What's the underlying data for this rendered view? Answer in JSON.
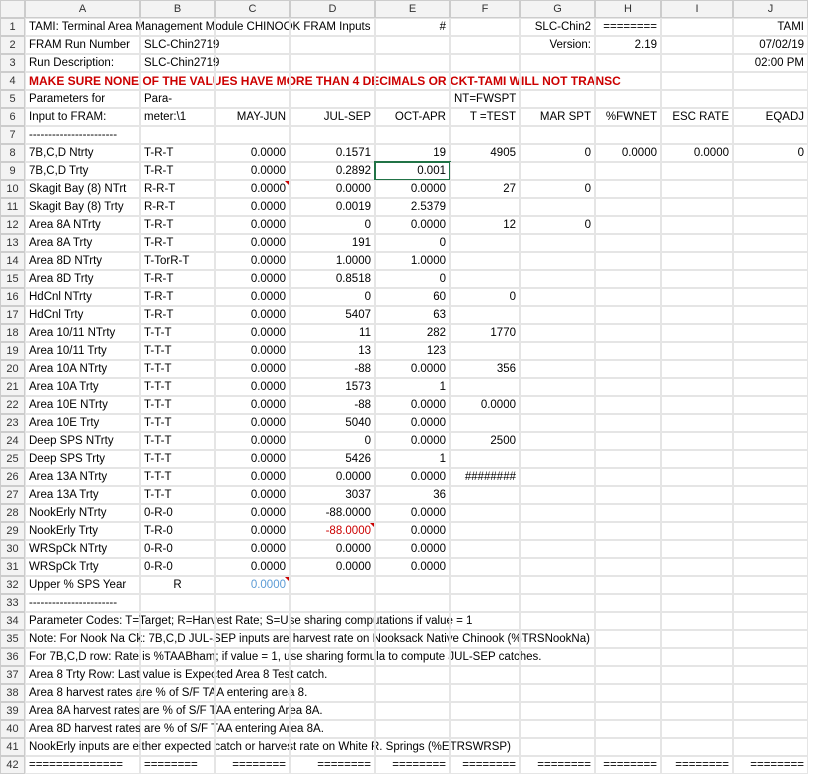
{
  "cols": [
    "",
    "A",
    "B",
    "C",
    "D",
    "E",
    "F",
    "G",
    "H",
    "I",
    "J"
  ],
  "rows": [
    {
      "n": "1",
      "cells": [
        "TAMI: Terminal Area Management Module CHINOOK FRAM Inputs",
        "",
        "",
        "",
        "#",
        "",
        "SLC-Chin2",
        "========",
        "",
        "TAMI"
      ]
    },
    {
      "n": "2",
      "cells": [
        "FRAM Run Number",
        "SLC-Chin2719",
        "",
        "",
        "",
        "",
        "Version:",
        "2.19",
        "",
        "07/02/19"
      ]
    },
    {
      "n": "3",
      "cells": [
        "Run Description:",
        "SLC-Chin2719",
        "",
        "",
        "",
        "",
        "",
        "",
        "",
        "02:00 PM"
      ]
    },
    {
      "n": "4",
      "cells": [
        "MAKE SURE NONE OF THE VALUES HAVE MORE THAN 4 DECIMALS OR CKT-TAMI WILL NOT TRANSC",
        "",
        "",
        "",
        "",
        "",
        "",
        "",
        "",
        ""
      ],
      "warn": true
    },
    {
      "n": "5",
      "cells": [
        "Parameters for",
        "Para-",
        "",
        "",
        "",
        "NT=FWSPT",
        "",
        "",
        "",
        ""
      ]
    },
    {
      "n": "6",
      "cells": [
        "Input to FRAM:",
        "meter:\\1",
        "MAY-JUN",
        "JUL-SEP",
        "OCT-APR",
        "T =TEST",
        "MAR SPT",
        "%FWNET",
        "ESC RATE",
        "EQADJ"
      ]
    },
    {
      "n": "7",
      "cells": [
        "-----------------------",
        "",
        "",
        "",
        "",
        "",
        "",
        "",
        "",
        ""
      ]
    },
    {
      "n": "8",
      "cells": [
        "7B,C,D Ntrty",
        "T-R-T",
        "0.0000",
        "0.1571",
        "19",
        "4905",
        "0",
        "0.0000",
        "0.0000",
        "0"
      ]
    },
    {
      "n": "9",
      "cells": [
        "7B,C,D Trty",
        "T-R-T",
        "0.0000",
        "0.2892",
        "0.001",
        "",
        "",
        "",
        "",
        ""
      ],
      "sel": 4
    },
    {
      "n": "10",
      "cells": [
        "Skagit Bay (8) NTrt",
        "R-R-T",
        "0.0000",
        "0.0000",
        "0.0000",
        "27",
        "0",
        "",
        "",
        ""
      ],
      "tick": 2
    },
    {
      "n": "11",
      "cells": [
        "Skagit Bay (8) Trty",
        "R-R-T",
        "0.0000",
        "0.0019",
        "2.5379",
        "",
        "",
        "",
        "",
        ""
      ]
    },
    {
      "n": "12",
      "cells": [
        "Area 8A NTrty",
        "T-R-T",
        "0.0000",
        "0",
        "0.0000",
        "12",
        "0",
        "",
        "",
        ""
      ]
    },
    {
      "n": "13",
      "cells": [
        "Area 8A Trty",
        "T-R-T",
        "0.0000",
        "191",
        "0",
        "",
        "",
        "",
        "",
        ""
      ]
    },
    {
      "n": "14",
      "cells": [
        "Area 8D NTrty",
        "T-TorR-T",
        "0.0000",
        "1.0000",
        "1.0000",
        "",
        "",
        "",
        "",
        ""
      ]
    },
    {
      "n": "15",
      "cells": [
        "Area 8D Trty",
        "T-R-T",
        "0.0000",
        "0.8518",
        "0",
        "",
        "",
        "",
        "",
        ""
      ]
    },
    {
      "n": "16",
      "cells": [
        "HdCnl NTrty",
        "T-R-T",
        "0.0000",
        "0",
        "60",
        "0",
        "",
        "",
        "",
        ""
      ]
    },
    {
      "n": "17",
      "cells": [
        "HdCnl Trty",
        "T-R-T",
        "0.0000",
        "5407",
        "63",
        "",
        "",
        "",
        "",
        ""
      ]
    },
    {
      "n": "18",
      "cells": [
        "Area 10/11 NTrty",
        "T-T-T",
        "0.0000",
        "11",
        "282",
        "1770",
        "",
        "",
        "",
        ""
      ]
    },
    {
      "n": "19",
      "cells": [
        "Area 10/11 Trty",
        "T-T-T",
        "0.0000",
        "13",
        "123",
        "",
        "",
        "",
        "",
        ""
      ]
    },
    {
      "n": "20",
      "cells": [
        "Area 10A NTrty",
        "T-T-T",
        "0.0000",
        "-88",
        "0.0000",
        "356",
        "",
        "",
        "",
        ""
      ]
    },
    {
      "n": "21",
      "cells": [
        "Area 10A Trty",
        "T-T-T",
        "0.0000",
        "1573",
        "1",
        "",
        "",
        "",
        "",
        ""
      ]
    },
    {
      "n": "22",
      "cells": [
        "Area 10E NTrty",
        "T-T-T",
        "0.0000",
        "-88",
        "0.0000",
        "0.0000",
        "",
        "",
        "",
        ""
      ]
    },
    {
      "n": "23",
      "cells": [
        "Area 10E Trty",
        "T-T-T",
        "0.0000",
        "5040",
        "0.0000",
        "",
        "",
        "",
        "",
        ""
      ]
    },
    {
      "n": "24",
      "cells": [
        "Deep SPS NTrty",
        "T-T-T",
        "0.0000",
        "0",
        "0.0000",
        "2500",
        "",
        "",
        "",
        ""
      ]
    },
    {
      "n": "25",
      "cells": [
        "Deep SPS Trty",
        "T-T-T",
        "0.0000",
        "5426",
        "1",
        "",
        "",
        "",
        "",
        ""
      ]
    },
    {
      "n": "26",
      "cells": [
        "Area 13A NTrty",
        "T-T-T",
        "0.0000",
        "0.0000",
        "0.0000",
        "########",
        "",
        "",
        "",
        ""
      ]
    },
    {
      "n": "27",
      "cells": [
        "Area 13A Trty",
        "T-T-T",
        "0.0000",
        "3037",
        "36",
        "",
        "",
        "",
        "",
        ""
      ]
    },
    {
      "n": "28",
      "cells": [
        "NookErly NTrty",
        "0-R-0",
        "0.0000",
        "-88.0000",
        "0.0000",
        "",
        "",
        "",
        "",
        ""
      ]
    },
    {
      "n": "29",
      "cells": [
        "NookErly Trty",
        "T-R-0",
        "0.0000",
        "-88.0000",
        "0.0000",
        "",
        "",
        "",
        "",
        ""
      ],
      "red": 3,
      "tick": 3
    },
    {
      "n": "30",
      "cells": [
        "WRSpCk NTrty",
        "0-R-0",
        "0.0000",
        "0.0000",
        "0.0000",
        "",
        "",
        "",
        "",
        ""
      ]
    },
    {
      "n": "31",
      "cells": [
        "WRSpCk Trty",
        "0-R-0",
        "0.0000",
        "0.0000",
        "0.0000",
        "",
        "",
        "",
        "",
        ""
      ]
    },
    {
      "n": "32",
      "cells": [
        "Upper % SPS Year",
        "R",
        "0.0000",
        "",
        "",
        "",
        "",
        "",
        "",
        ""
      ],
      "blue": 2,
      "tick": 2,
      "bcenter": true
    },
    {
      "n": "33",
      "cells": [
        "-----------------------",
        "",
        "",
        "",
        "",
        "",
        "",
        "",
        "",
        ""
      ]
    },
    {
      "n": "34",
      "cells": [
        "Parameter Codes: T=Target; R=Harvest Rate; S=Use sharing computations if value = 1",
        "",
        "",
        "",
        "",
        "",
        "",
        "",
        "",
        ""
      ]
    },
    {
      "n": "35",
      "cells": [
        "Note: For Nook Na Ck: 7B,C,D JUL-SEP inputs are harvest rate on Nooksack Native Chinook (%TRSNookNa)",
        "",
        "",
        "",
        "",
        "",
        "",
        "",
        "",
        ""
      ]
    },
    {
      "n": "36",
      "cells": [
        "       For 7B,C,D row: Rate is %TAABham; if value = 1, use sharing formula to compute JUL-SEP catches.",
        "",
        "",
        "",
        "",
        "",
        "",
        "",
        "",
        ""
      ]
    },
    {
      "n": "37",
      "cells": [
        "       Area 8 Trty Row: Last value is Expected Area 8 Test catch.",
        "",
        "",
        "",
        "",
        "",
        "",
        "",
        "",
        ""
      ]
    },
    {
      "n": "38",
      "cells": [
        "       Area 8 harvest rates are % of S/F TAA entering area 8.",
        "",
        "",
        "",
        "",
        "",
        "",
        "",
        "",
        ""
      ]
    },
    {
      "n": "39",
      "cells": [
        "       Area 8A harvest rates are % of S/F TAA entering Area 8A.",
        "",
        "",
        "",
        "",
        "",
        "",
        "",
        "",
        ""
      ]
    },
    {
      "n": "40",
      "cells": [
        "       Area 8D harvest rates are % of S/F TAA entering Area 8A.",
        "",
        "",
        "",
        "",
        "",
        "",
        "",
        "",
        ""
      ]
    },
    {
      "n": "41",
      "cells": [
        "       NookErly inputs are either expected catch or harvest rate on White R. Springs (%ETRSWRSP)",
        "",
        "",
        "",
        "",
        "",
        "",
        "",
        "",
        ""
      ]
    },
    {
      "n": "42",
      "cells": [
        "==============",
        "========",
        "========",
        "========",
        "========",
        "========",
        "========",
        "========",
        "========",
        "========"
      ]
    }
  ]
}
